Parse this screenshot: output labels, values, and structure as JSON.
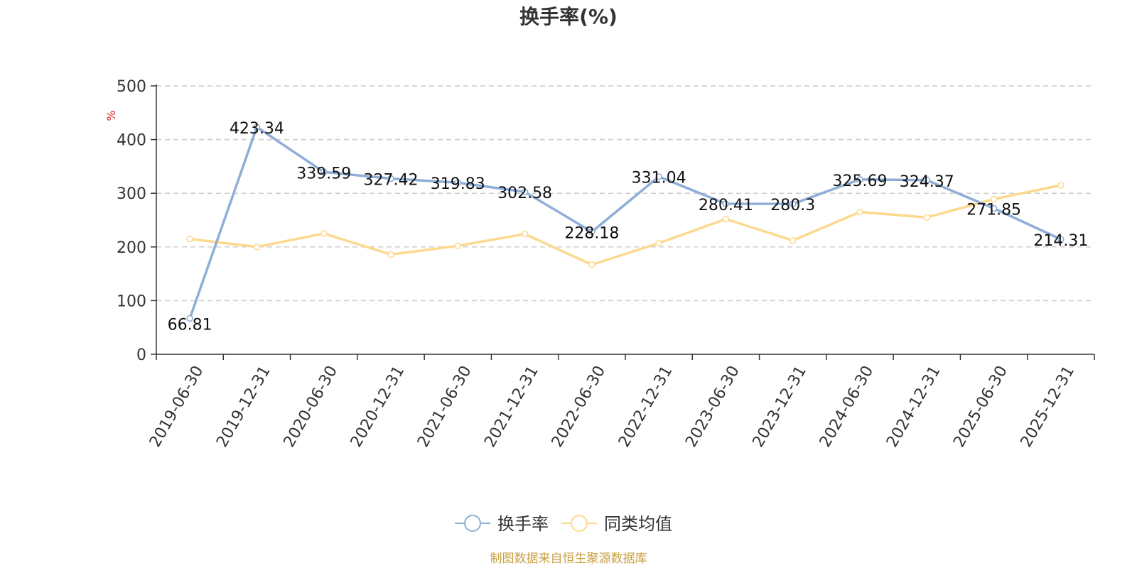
{
  "chart_data": {
    "type": "line",
    "title": "换手率(%)",
    "ylabel": "%",
    "ylim": [
      0,
      500
    ],
    "yticks": [
      0,
      100,
      200,
      300,
      400,
      500
    ],
    "grid": true,
    "legend_position": "bottom-center",
    "categories": [
      "2019-06-30",
      "2019-12-31",
      "2020-06-30",
      "2020-12-31",
      "2021-06-30",
      "2021-12-31",
      "2022-06-30",
      "2022-12-31",
      "2023-06-30",
      "2023-12-31",
      "2024-06-30",
      "2024-12-31",
      "2025-06-30",
      "2025-12-31"
    ],
    "series": [
      {
        "name": "换手率",
        "color": "#8eaed8",
        "values": [
          66.81,
          423.34,
          339.59,
          327.42,
          319.83,
          302.58,
          228.18,
          331.04,
          280.41,
          280.3,
          325.69,
          324.37,
          271.85,
          214.31
        ],
        "labels": [
          "66.81",
          "423.34",
          "339.59",
          "327.42",
          "319.83",
          "302.58",
          "228.18",
          "331.04",
          "280.41",
          "280.3",
          "325.69",
          "324.37",
          "271.85",
          "214.31"
        ]
      },
      {
        "name": "同类均值",
        "color": "#fcd98f",
        "values": [
          215,
          200,
          225,
          186,
          202,
          224,
          167,
          207,
          252,
          212,
          265,
          255,
          289,
          315
        ]
      }
    ]
  },
  "source_text": "制图数据来自恒生聚源数据库",
  "colors": {
    "axis": "#333333",
    "grid": "#cccccc",
    "unit": "#e02020",
    "source": "#c8a040"
  }
}
